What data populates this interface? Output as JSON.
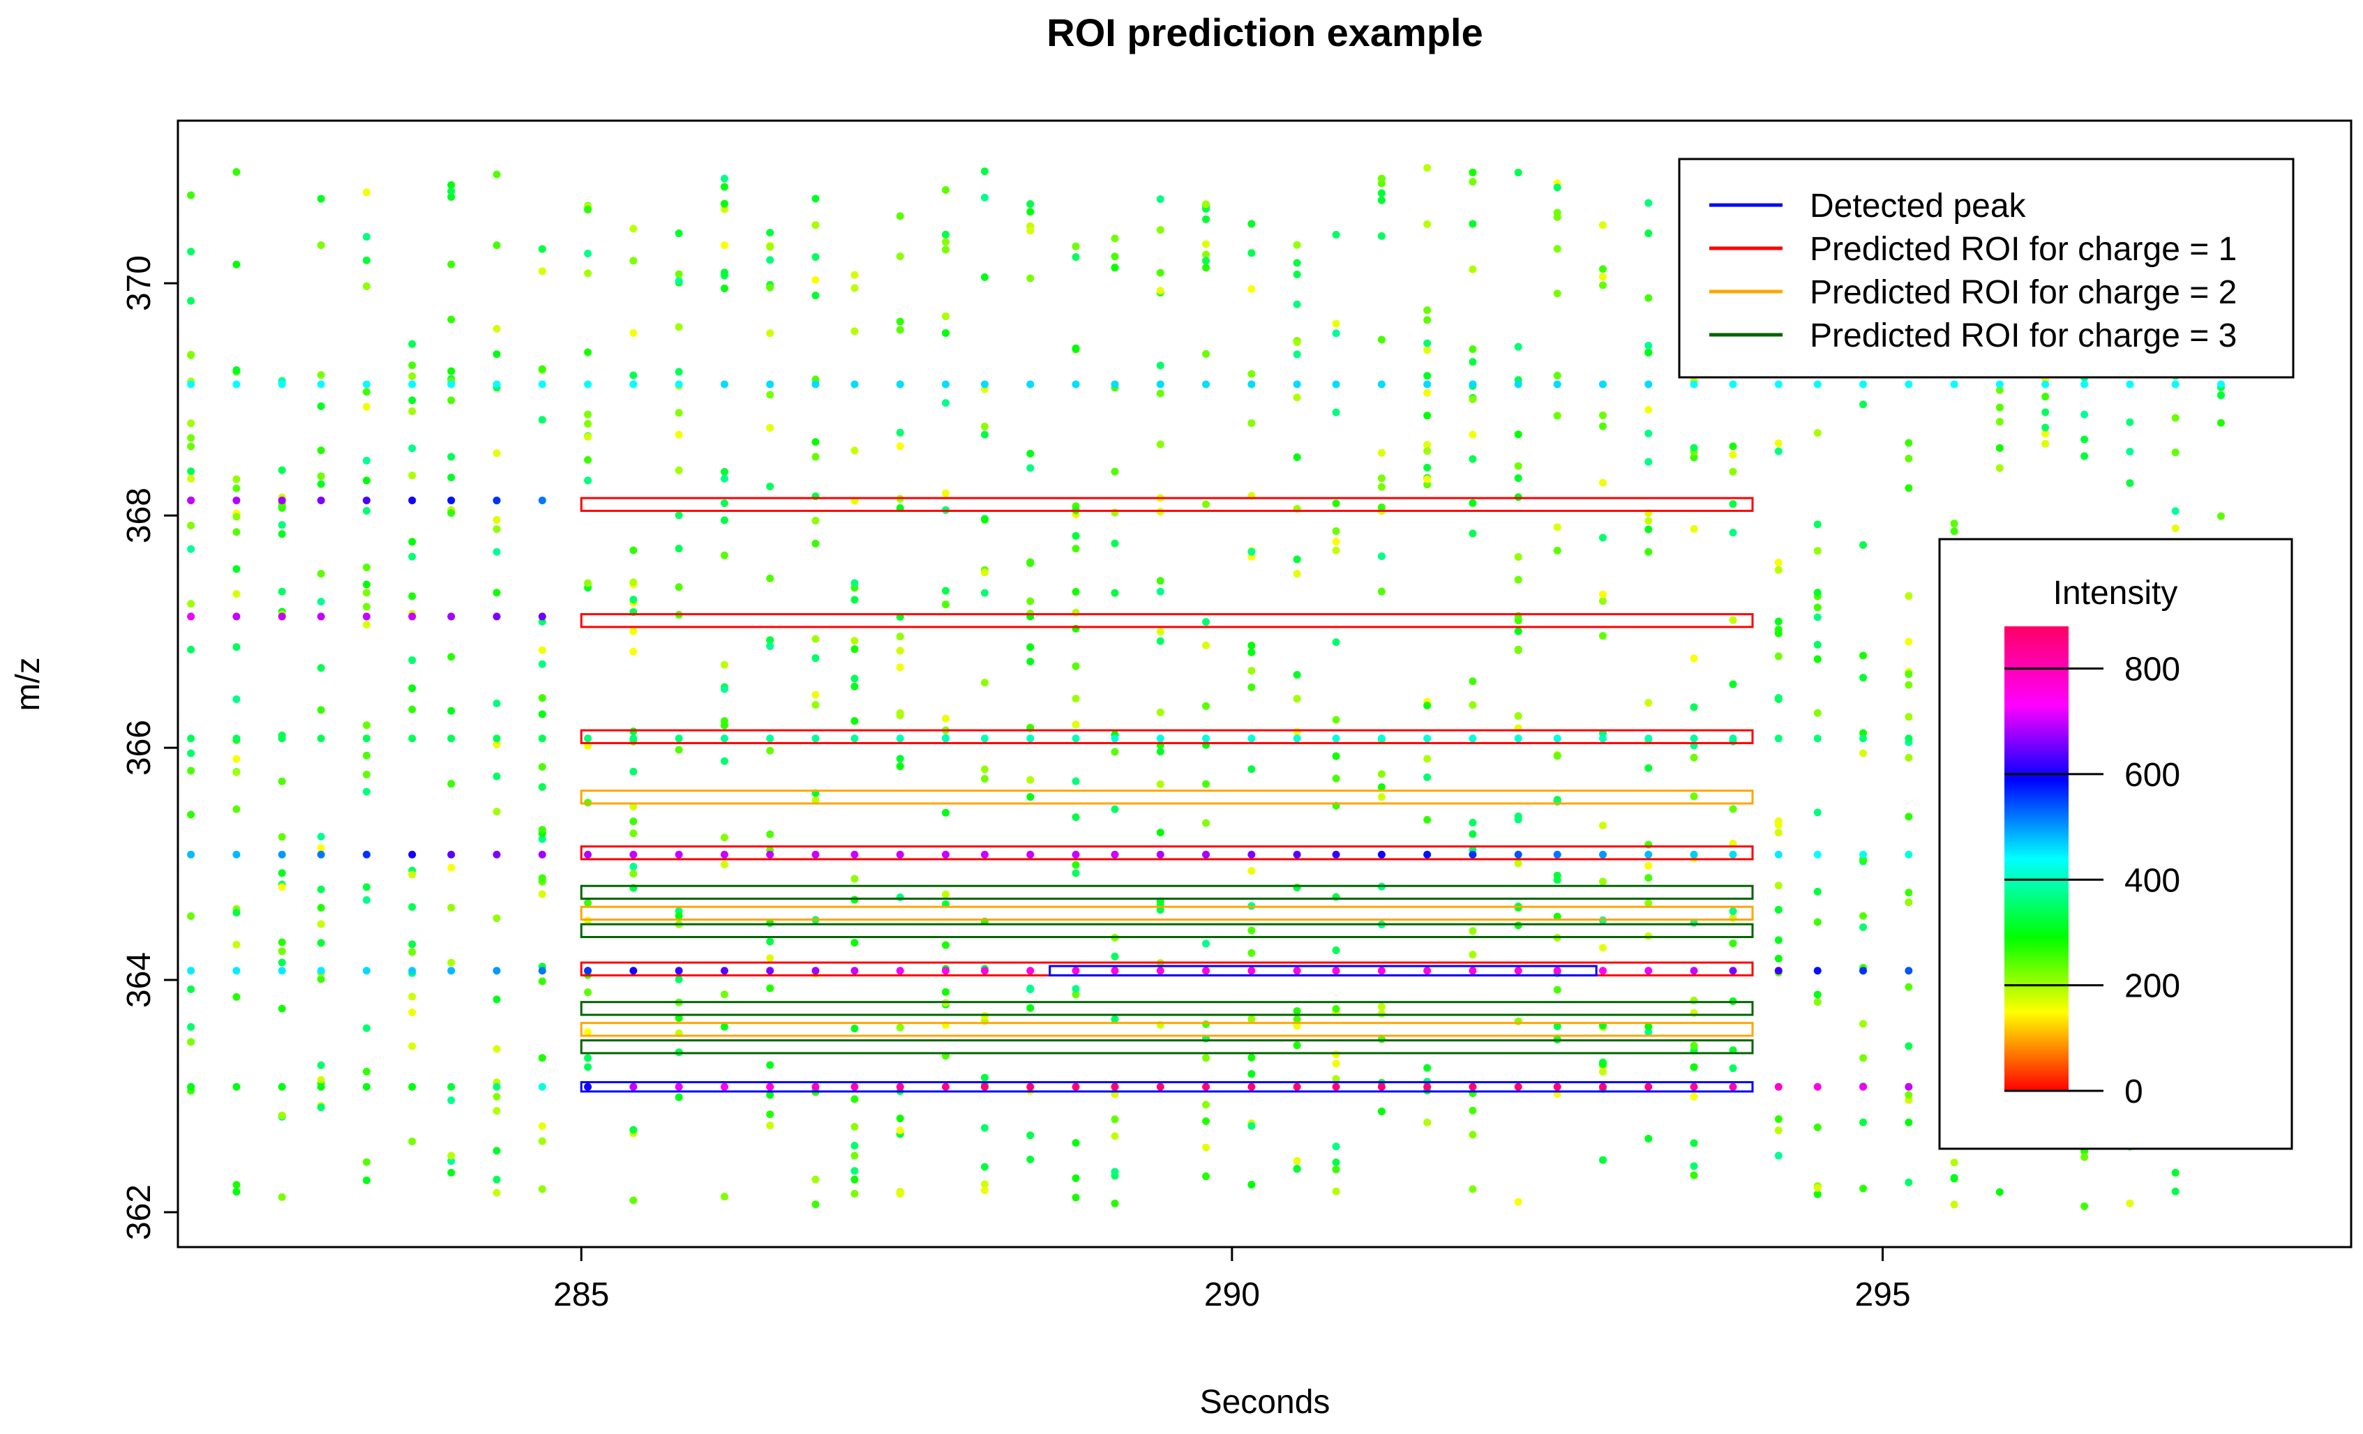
{
  "chart_data": {
    "type": "scatter",
    "title": "ROI prediction example",
    "xlabel": "Seconds",
    "ylabel": "m/z",
    "xlim": [
      281.9,
      298.6
    ],
    "ylim": [
      361.7,
      371.4
    ],
    "x_ticks": [
      285,
      290,
      295
    ],
    "y_ticks": [
      362,
      364,
      366,
      368,
      370
    ],
    "grid": false,
    "legend": {
      "placement": "top-right",
      "entries": [
        {
          "label": "Detected peak",
          "color": "#0000FF"
        },
        {
          "label": "Predicted ROI for charge = 1",
          "color": "#FF0000"
        },
        {
          "label": "Predicted ROI for charge = 2",
          "color": "#FFA500"
        },
        {
          "label": "Predicted ROI for charge = 3",
          "color": "#006400"
        }
      ]
    },
    "colorbar": {
      "title": "Intensity",
      "min": 0,
      "max": 880,
      "ticks": [
        0,
        200,
        400,
        600,
        800
      ],
      "placement": "right"
    },
    "scan_times": [
      282.0,
      282.35,
      282.7,
      283.0,
      283.35,
      283.7,
      284.0,
      284.35,
      284.7,
      285.05,
      285.4,
      285.75,
      286.1,
      286.45,
      286.8,
      287.1,
      287.45,
      287.8,
      288.1,
      288.45,
      288.8,
      289.1,
      289.45,
      289.8,
      290.15,
      290.5,
      290.8,
      291.15,
      291.5,
      291.85,
      292.2,
      292.5,
      292.85,
      293.2,
      293.55,
      293.85,
      294.2,
      294.5,
      294.85,
      295.2,
      295.55,
      295.9,
      296.25,
      296.55,
      296.9,
      297.25,
      297.6
    ],
    "peak_series": [
      {
        "name": "",
        "mz": 368.13,
        "intensities": [
          700,
          690,
          680,
          660,
          630,
          600,
          580,
          560,
          520
        ]
      },
      {
        "name": "",
        "mz": 367.13,
        "intensities": [
          720,
          700,
          700,
          700,
          700,
          700,
          680,
          660,
          650
        ]
      },
      {
        "name": "",
        "mz": 365.08,
        "intensities": [
          480,
          480,
          500,
          520,
          560,
          600,
          640,
          660,
          680,
          690,
          700,
          700,
          700,
          700,
          700,
          700,
          700,
          700,
          700,
          700,
          700,
          700,
          690,
          680,
          660,
          640,
          620,
          600,
          580,
          560,
          540,
          520,
          500,
          480,
          470,
          460,
          450,
          440,
          430,
          420,
          410,
          400,
          400,
          400,
          400,
          400,
          400
        ]
      },
      {
        "name": "",
        "mz": 364.08,
        "intensities": [
          450,
          450,
          450,
          450,
          460,
          470,
          480,
          500,
          520,
          560,
          600,
          620,
          640,
          660,
          680,
          700,
          720,
          740,
          760,
          760,
          760,
          760,
          760,
          760,
          760,
          760,
          760,
          760,
          760,
          760,
          760,
          760,
          740,
          720,
          700,
          660,
          620,
          580,
          560,
          540,
          520,
          500,
          480,
          460,
          440,
          420,
          400
        ]
      },
      {
        "name": "",
        "mz": 363.08,
        "intensities": [
          300,
          300,
          300,
          300,
          300,
          300,
          320,
          360,
          420,
          600,
          700,
          720,
          740,
          760,
          780,
          800,
          820,
          840,
          860,
          860,
          860,
          860,
          860,
          860,
          860,
          860,
          860,
          860,
          860,
          860,
          860,
          860,
          850,
          840,
          820,
          800,
          780,
          760,
          720,
          700,
          680,
          660,
          640,
          620,
          600,
          580,
          560
        ]
      },
      {
        "name": "",
        "mz": 369.13,
        "intensities": [
          440,
          440,
          440,
          440,
          440,
          440,
          440,
          440,
          440,
          440,
          440,
          440,
          460,
          460,
          460,
          460,
          460,
          460,
          460,
          460,
          460,
          460,
          460,
          460,
          460,
          460,
          460,
          460,
          460,
          460,
          460,
          460,
          460,
          460,
          440,
          440,
          440,
          440,
          440,
          440,
          440,
          440,
          440,
          440,
          440,
          440,
          440
        ]
      },
      {
        "name": "",
        "mz": 366.08,
        "intensities": [
          340,
          340,
          340,
          340,
          340,
          340,
          340,
          340,
          340,
          360,
          360,
          360,
          380,
          380,
          380,
          380,
          400,
          400,
          400,
          400,
          400,
          420,
          420,
          420,
          420,
          420,
          420,
          420,
          420,
          420,
          420,
          420,
          400,
          400,
          380,
          380,
          360,
          360,
          360,
          340,
          340,
          340,
          340,
          340,
          340,
          340,
          340
        ]
      }
    ],
    "detected_peaks": [
      {
        "mz_min": 364.04,
        "mz_max": 364.12,
        "rt_min": 288.6,
        "rt_max": 292.8
      },
      {
        "mz_min": 363.04,
        "mz_max": 363.12,
        "rt_min": 285.0,
        "rt_max": 294.0
      }
    ],
    "predicted_rois": [
      {
        "charge": 1,
        "mz_min": 368.04,
        "mz_max": 368.15,
        "rt_min": 285.0,
        "rt_max": 294.0
      },
      {
        "charge": 1,
        "mz_min": 367.04,
        "mz_max": 367.15,
        "rt_min": 285.0,
        "rt_max": 294.0
      },
      {
        "charge": 1,
        "mz_min": 366.04,
        "mz_max": 366.15,
        "rt_min": 285.0,
        "rt_max": 294.0
      },
      {
        "charge": 1,
        "mz_min": 365.04,
        "mz_max": 365.15,
        "rt_min": 285.0,
        "rt_max": 294.0
      },
      {
        "charge": 1,
        "mz_min": 364.04,
        "mz_max": 364.15,
        "rt_min": 285.0,
        "rt_max": 294.0
      },
      {
        "charge": 2,
        "mz_min": 365.52,
        "mz_max": 365.63,
        "rt_min": 285.0,
        "rt_max": 294.0
      },
      {
        "charge": 2,
        "mz_min": 364.52,
        "mz_max": 364.63,
        "rt_min": 285.0,
        "rt_max": 294.0
      },
      {
        "charge": 2,
        "mz_min": 363.52,
        "mz_max": 363.63,
        "rt_min": 285.0,
        "rt_max": 294.0
      },
      {
        "charge": 3,
        "mz_min": 364.7,
        "mz_max": 364.81,
        "rt_min": 285.0,
        "rt_max": 294.0
      },
      {
        "charge": 3,
        "mz_min": 364.37,
        "mz_max": 364.48,
        "rt_min": 285.0,
        "rt_max": 294.0
      },
      {
        "charge": 3,
        "mz_min": 363.7,
        "mz_max": 363.81,
        "rt_min": 285.0,
        "rt_max": 294.0
      },
      {
        "charge": 3,
        "mz_min": 363.37,
        "mz_max": 363.48,
        "rt_min": 285.0,
        "rt_max": 294.0
      }
    ],
    "noise": {
      "mz_min": 362.05,
      "mz_max": 371.0,
      "points_per_scan": 24,
      "intensity_min": 150,
      "intensity_max": 380,
      "seed": 12345
    }
  }
}
